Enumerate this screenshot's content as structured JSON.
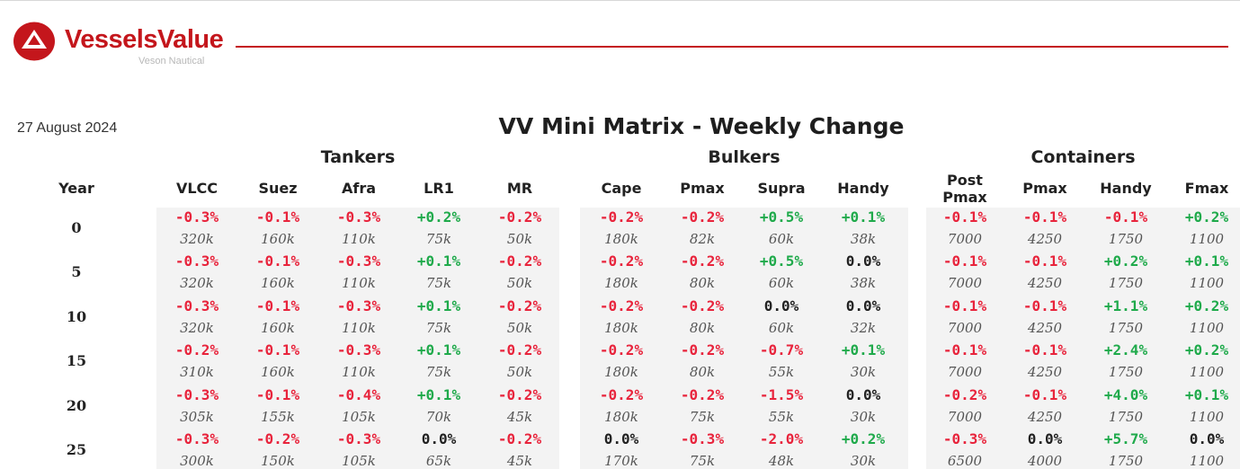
{
  "header": {
    "brand": "VesselsValue",
    "sub_brand": "Veson Nautical",
    "date": "27 August 2024",
    "title": "VV Mini Matrix - Weekly Change"
  },
  "colors": {
    "brand_red": "#c4161c",
    "negative": "#e8243c",
    "positive": "#1faa4b",
    "neutral": "#222222",
    "panel_bg": "#f3f3f3"
  },
  "year_header": "Year",
  "groups": [
    {
      "label": "Tankers",
      "columns": [
        "VLCC",
        "Suez",
        "Afra",
        "LR1",
        "MR"
      ]
    },
    {
      "label": "Bulkers",
      "columns": [
        "Cape",
        "Pmax",
        "Supra",
        "Handy"
      ]
    },
    {
      "label": "Containers",
      "columns": [
        "Post Pmax",
        "Pmax",
        "Handy",
        "Fmax"
      ]
    }
  ],
  "rows": [
    {
      "year": "0",
      "changes": [
        "-0.3%",
        "-0.1%",
        "-0.3%",
        "+0.2%",
        "-0.2%",
        "-0.2%",
        "-0.2%",
        "+0.5%",
        "+0.1%",
        "-0.1%",
        "-0.1%",
        "-0.1%",
        "+0.2%"
      ],
      "sizes": [
        "320k",
        "160k",
        "110k",
        "75k",
        "50k",
        "180k",
        "82k",
        "60k",
        "38k",
        "7000",
        "4250",
        "1750",
        "1100"
      ]
    },
    {
      "year": "5",
      "changes": [
        "-0.3%",
        "-0.1%",
        "-0.3%",
        "+0.1%",
        "-0.2%",
        "-0.2%",
        "-0.2%",
        "+0.5%",
        "0.0%",
        "-0.1%",
        "-0.1%",
        "+0.2%",
        "+0.1%"
      ],
      "sizes": [
        "320k",
        "160k",
        "110k",
        "75k",
        "50k",
        "180k",
        "80k",
        "60k",
        "38k",
        "7000",
        "4250",
        "1750",
        "1100"
      ]
    },
    {
      "year": "10",
      "changes": [
        "-0.3%",
        "-0.1%",
        "-0.3%",
        "+0.1%",
        "-0.2%",
        "-0.2%",
        "-0.2%",
        "0.0%",
        "0.0%",
        "-0.1%",
        "-0.1%",
        "+1.1%",
        "+0.2%"
      ],
      "sizes": [
        "320k",
        "160k",
        "110k",
        "75k",
        "50k",
        "180k",
        "80k",
        "60k",
        "32k",
        "7000",
        "4250",
        "1750",
        "1100"
      ]
    },
    {
      "year": "15",
      "changes": [
        "-0.2%",
        "-0.1%",
        "-0.3%",
        "+0.1%",
        "-0.2%",
        "-0.2%",
        "-0.2%",
        "-0.7%",
        "+0.1%",
        "-0.1%",
        "-0.1%",
        "+2.4%",
        "+0.2%"
      ],
      "sizes": [
        "310k",
        "160k",
        "110k",
        "75k",
        "50k",
        "180k",
        "80k",
        "55k",
        "30k",
        "7000",
        "4250",
        "1750",
        "1100"
      ]
    },
    {
      "year": "20",
      "changes": [
        "-0.3%",
        "-0.1%",
        "-0.4%",
        "+0.1%",
        "-0.2%",
        "-0.2%",
        "-0.2%",
        "-1.5%",
        "0.0%",
        "-0.2%",
        "-0.1%",
        "+4.0%",
        "+0.1%"
      ],
      "sizes": [
        "305k",
        "155k",
        "105k",
        "70k",
        "45k",
        "180k",
        "75k",
        "55k",
        "30k",
        "7000",
        "4250",
        "1750",
        "1100"
      ]
    },
    {
      "year": "25",
      "changes": [
        "-0.3%",
        "-0.2%",
        "-0.3%",
        "0.0%",
        "-0.2%",
        "0.0%",
        "-0.3%",
        "-2.0%",
        "+0.2%",
        "-0.3%",
        "0.0%",
        "+5.7%",
        "0.0%"
      ],
      "sizes": [
        "300k",
        "150k",
        "105k",
        "65k",
        "45k",
        "170k",
        "75k",
        "48k",
        "30k",
        "6500",
        "4000",
        "1750",
        "1100"
      ]
    }
  ]
}
